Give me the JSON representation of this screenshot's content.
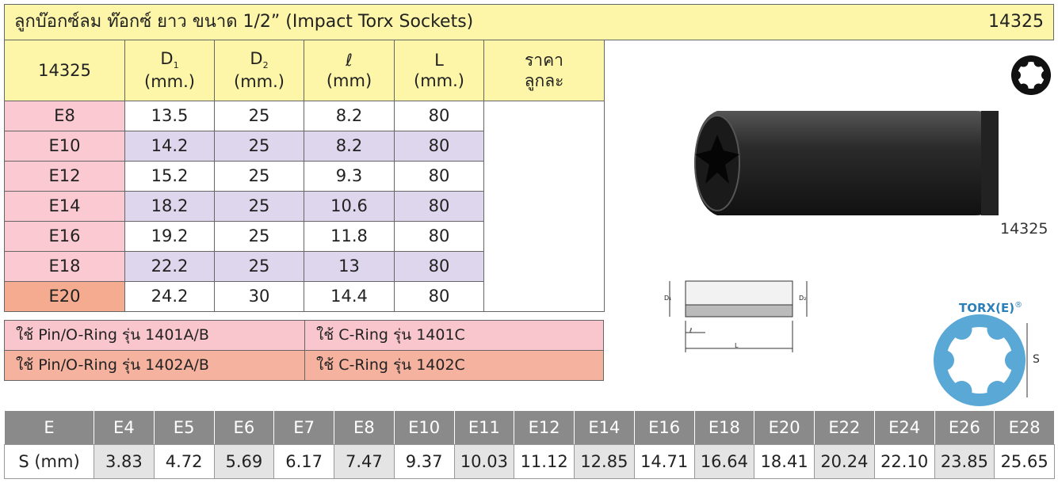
{
  "header": {
    "title": "ลูกบ๊อกซ์ลม ท๊อกซ์ ยาว ขนาด 1/2”  (Impact Torx Sockets)",
    "code": "14325"
  },
  "spec_table": {
    "header": [
      {
        "text": "14325"
      },
      {
        "symbol": "D",
        "sub": "1",
        "unit": "(mm.)"
      },
      {
        "symbol": "D",
        "sub": "2",
        "unit": "(mm.)"
      },
      {
        "symbol": "ℓ",
        "unit": "(mm)"
      },
      {
        "symbol": "L",
        "unit": "(mm.)"
      },
      {
        "symbol": "ราคา",
        "unit": "ลูกละ"
      }
    ],
    "rows": [
      [
        "E8",
        "13.5",
        "25",
        "8.2",
        "80"
      ],
      [
        "E10",
        "14.2",
        "25",
        "8.2",
        "80"
      ],
      [
        "E12",
        "15.2",
        "25",
        "9.3",
        "80"
      ],
      [
        "E14",
        "18.2",
        "25",
        "10.6",
        "80"
      ],
      [
        "E16",
        "19.2",
        "25",
        "11.8",
        "80"
      ],
      [
        "E18",
        "22.2",
        "25",
        "13",
        "80"
      ],
      [
        "E20",
        "24.2",
        "30",
        "14.4",
        "80"
      ]
    ]
  },
  "ring_table": {
    "rows": [
      [
        "ใช้ Pin/O-Ring รุ่น 1401A/B",
        "ใช้ C-Ring รุ่น 1401C"
      ],
      [
        "ใช้ Pin/O-Ring รุ่น 1402A/B",
        "ใช้ C-Ring รุ่น 1402C"
      ]
    ]
  },
  "product_image": {
    "caption": "14325"
  },
  "diagram": {
    "labels": [
      "D₁",
      "D₂",
      "ℓ",
      "L"
    ]
  },
  "torx_figure": {
    "label": "TORX(E)",
    "mark": "®",
    "dimension": "S"
  },
  "size_table": {
    "e_row": [
      "E",
      "E4",
      "E5",
      "E6",
      "E7",
      "E8",
      "E10",
      "E11",
      "E12",
      "E14",
      "E16",
      "E18",
      "E20",
      "E22",
      "E24",
      "E26",
      "E28"
    ],
    "s_row": [
      "S (mm)",
      "3.83",
      "4.72",
      "5.69",
      "6.17",
      "7.47",
      "9.37",
      "10.03",
      "11.12",
      "12.85",
      "14.71",
      "16.64",
      "18.41",
      "20.24",
      "22.10",
      "23.85",
      "25.65"
    ]
  }
}
